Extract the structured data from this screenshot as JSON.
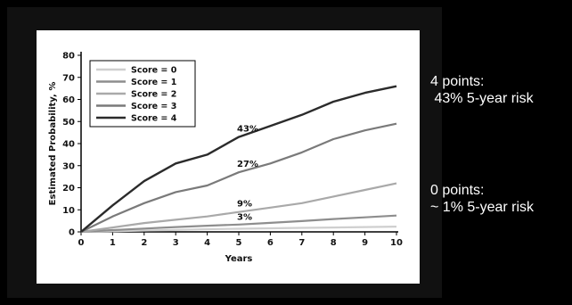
{
  "chart_data": {
    "type": "line",
    "xlabel": "Years",
    "ylabel": "Estimated Probability, %",
    "xlim": [
      0,
      10
    ],
    "ylim": [
      0,
      80
    ],
    "x_ticks": [
      0,
      1,
      2,
      3,
      4,
      5,
      6,
      7,
      8,
      9,
      10
    ],
    "y_ticks": [
      0,
      10,
      20,
      30,
      40,
      50,
      60,
      70,
      80
    ],
    "grid": false,
    "legend_placement": "top-left",
    "x": [
      0,
      1,
      2,
      3,
      4,
      5,
      6,
      7,
      8,
      9,
      10
    ],
    "series": [
      {
        "name": "Score = 0",
        "color": "#cfcfcf",
        "values": [
          0,
          0.3,
          0.6,
          0.9,
          1.2,
          1.4,
          1.6,
          1.8,
          2.0,
          2.2,
          2.4
        ]
      },
      {
        "name": "Score = 1",
        "color": "#8e8e8e",
        "values": [
          0,
          0.8,
          1.5,
          2.2,
          2.8,
          3.3,
          4.1,
          4.9,
          5.8,
          6.6,
          7.4
        ]
      },
      {
        "name": "Score = 2",
        "color": "#a9a9a9",
        "values": [
          0,
          2.0,
          4.0,
          5.5,
          7.0,
          9.0,
          11.0,
          13.0,
          16.0,
          19.0,
          22.0
        ]
      },
      {
        "name": "Score = 3",
        "color": "#7a7a7a",
        "values": [
          0,
          7.0,
          13.0,
          18.0,
          21.0,
          27.0,
          31.0,
          36.0,
          42.0,
          46.0,
          49.0
        ]
      },
      {
        "name": "Score = 4",
        "color": "#2b2b2b",
        "values": [
          0,
          12.0,
          23.0,
          31.0,
          35.0,
          43.0,
          48.0,
          53.0,
          59.0,
          63.0,
          66.0
        ]
      }
    ],
    "annotations": [
      {
        "text": "43%",
        "x": 5,
        "y": 43
      },
      {
        "text": "27%",
        "x": 5,
        "y": 27
      },
      {
        "text": "9%",
        "x": 5,
        "y": 9
      },
      {
        "text": "3%",
        "x": 5,
        "y": 3
      }
    ]
  },
  "notes": {
    "high": "4 points:\n 43% 5-year risk",
    "low": "0 points:\n~ 1% 5-year risk"
  },
  "colors": {
    "background": "#000000",
    "plot_background": "#ffffff",
    "text": "#ffffff"
  }
}
